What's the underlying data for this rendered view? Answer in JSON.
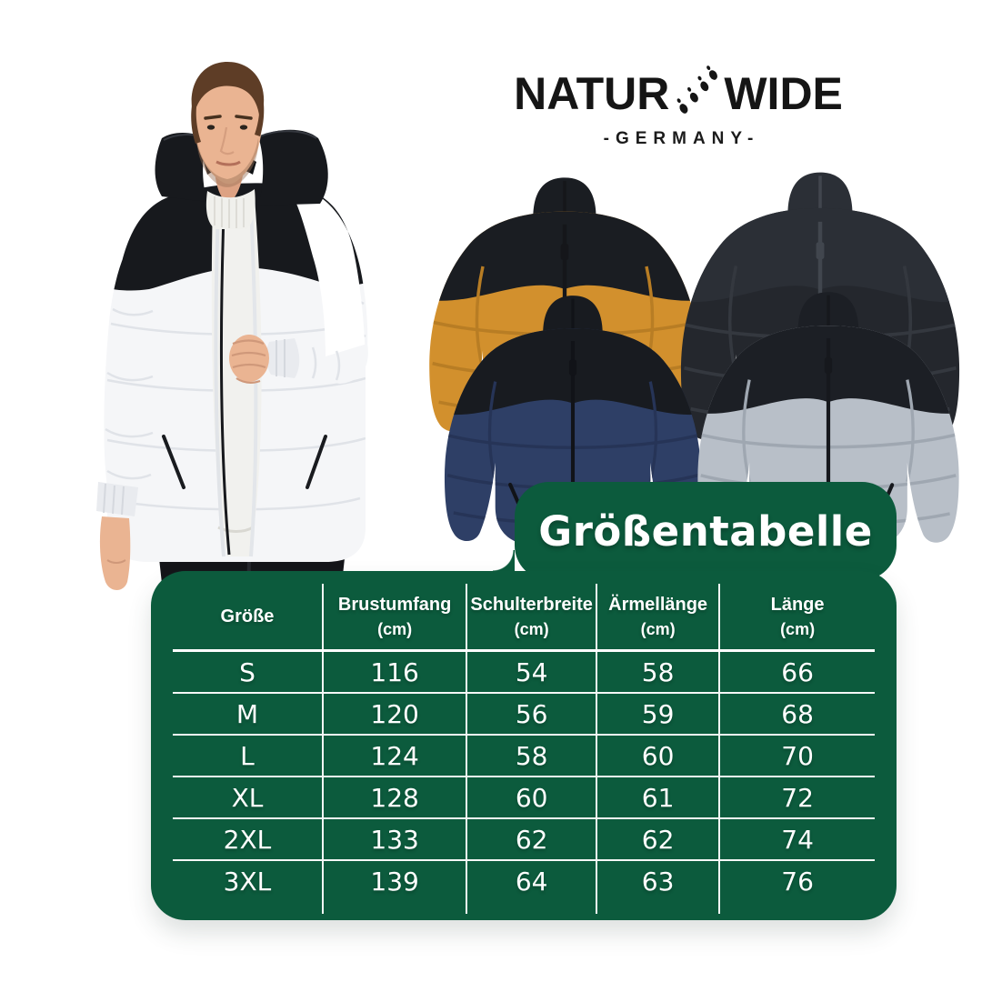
{
  "brand": {
    "name_left": "NATUR",
    "name_right": "WIDE",
    "subtitle": "-GERMANY-",
    "logo_color": "#151515",
    "footprints_icon": "footprints-icon"
  },
  "hero": {
    "description": "man-wearing-white-black-puffer-jacket",
    "colors": {
      "jacket": "#f5f6f8",
      "yoke": "#17191d",
      "sweater": "#f1f1ee",
      "skin": "#eab492",
      "hair": "#5e3d26",
      "pants": "#141519"
    }
  },
  "products": {
    "description": "four-puffer-jacket-colorways",
    "variants": [
      {
        "name": "jacket-ochre-black",
        "body": "#d2902d",
        "yoke": "#1a1d22",
        "seam": "#b87d24",
        "zip": "#15161a"
      },
      {
        "name": "jacket-black",
        "body": "#24272d",
        "yoke": "#2b2f36",
        "seam": "#34383f",
        "zip": "#41464e"
      },
      {
        "name": "jacket-navy-black",
        "body": "#2e3f66",
        "yoke": "#181b20",
        "seam": "#263457",
        "zip": "#111318"
      },
      {
        "name": "jacket-grey-black",
        "body": "#b8bfc8",
        "yoke": "#1c1f25",
        "seam": "#9fa7b1",
        "zip": "#16181d"
      }
    ]
  },
  "size_chart": {
    "title": "Größentabelle",
    "panel_color": "#0c5b3d",
    "text_color": "#ffffff",
    "columns": [
      {
        "label": "Größe",
        "unit": ""
      },
      {
        "label": "Brustumfang",
        "unit": "(cm)"
      },
      {
        "label": "Schulterbreite",
        "unit": "(cm)"
      },
      {
        "label": "Ärmellänge",
        "unit": "(cm)"
      },
      {
        "label": "Länge",
        "unit": "(cm)"
      }
    ],
    "rows": [
      {
        "size": "S",
        "values": [
          116,
          54,
          58,
          66
        ]
      },
      {
        "size": "M",
        "values": [
          120,
          56,
          59,
          68
        ]
      },
      {
        "size": "L",
        "values": [
          124,
          58,
          60,
          70
        ]
      },
      {
        "size": "XL",
        "values": [
          128,
          60,
          61,
          72
        ]
      },
      {
        "size": "2XL",
        "values": [
          133,
          62,
          62,
          74
        ]
      },
      {
        "size": "3XL",
        "values": [
          139,
          64,
          63,
          76
        ]
      }
    ]
  },
  "chart_data": {
    "type": "table",
    "title": "Größentabelle",
    "columns": [
      "Größe",
      "Brustumfang (cm)",
      "Schulterbreite (cm)",
      "Ärmellänge (cm)",
      "Länge (cm)"
    ],
    "rows": [
      [
        "S",
        116,
        54,
        58,
        66
      ],
      [
        "M",
        120,
        56,
        59,
        68
      ],
      [
        "L",
        124,
        58,
        60,
        70
      ],
      [
        "XL",
        128,
        60,
        61,
        72
      ],
      [
        "2XL",
        133,
        62,
        62,
        74
      ],
      [
        "3XL",
        139,
        64,
        63,
        76
      ]
    ]
  }
}
